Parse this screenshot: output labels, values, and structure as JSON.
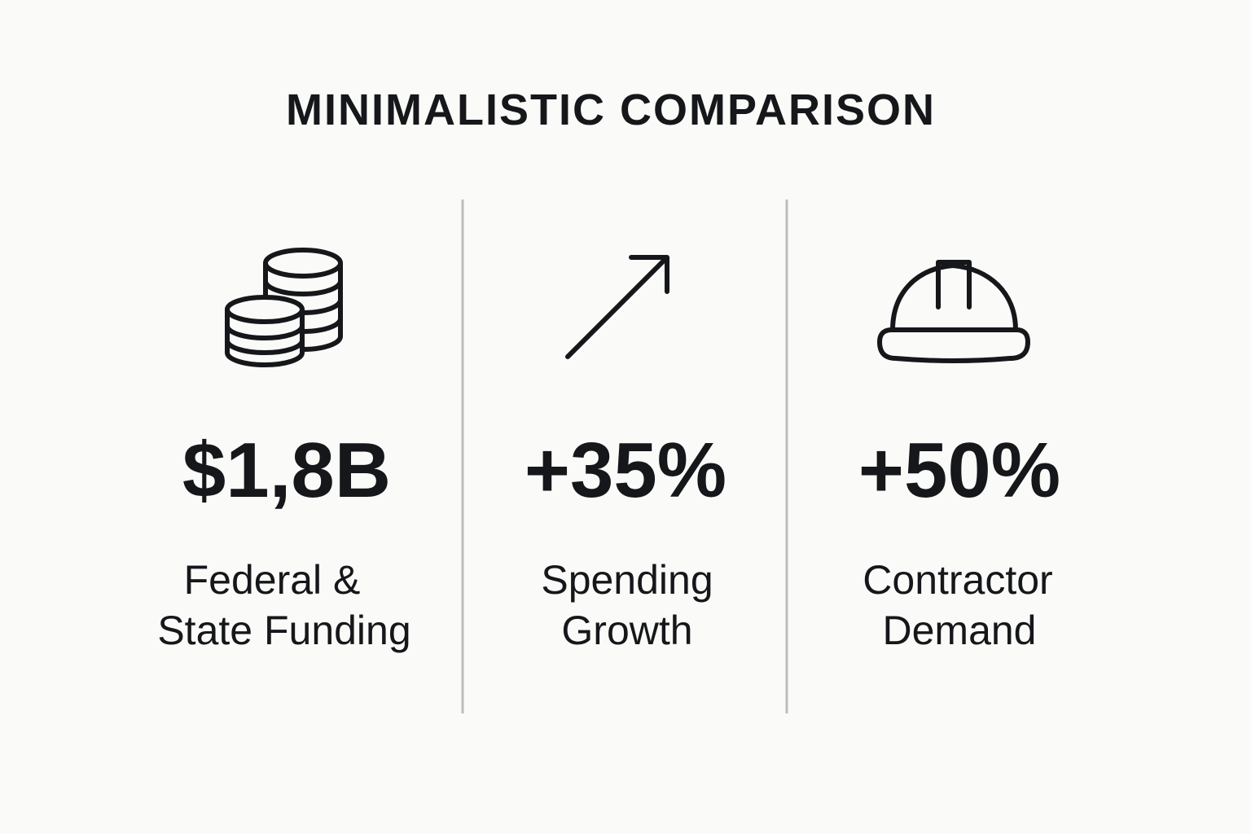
{
  "title": "MINIMALISTIC COMPARISON",
  "panels": [
    {
      "value": "$1,8B",
      "label_lines": [
        "Federal &",
        "State Funding"
      ]
    },
    {
      "value": "+35%",
      "label_lines": [
        "Spending",
        "Growth"
      ]
    },
    {
      "value": "+50%",
      "label_lines": [
        "Contractor",
        "Demand"
      ]
    }
  ]
}
